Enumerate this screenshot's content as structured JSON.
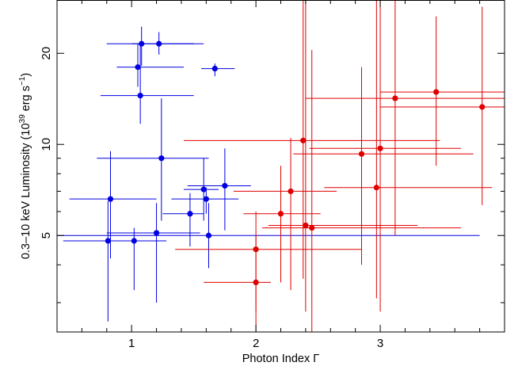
{
  "chart_data": {
    "type": "scatter",
    "xlabel": "Photon Index Γ",
    "ylabel_parts": [
      "0.3–10 keV Luminosity (10",
      "39",
      " erg s",
      "−1",
      ")"
    ],
    "xlim": [
      0.4,
      4.0
    ],
    "ylim": [
      2.4,
      30
    ],
    "y_scale": "log",
    "x_ticks": [
      {
        "value": 1,
        "label": "1"
      },
      {
        "value": 2,
        "label": "2"
      },
      {
        "value": 3,
        "label": "3"
      }
    ],
    "x_minor_ticks": [
      0.6,
      0.8,
      1.2,
      1.4,
      1.6,
      1.8,
      2.2,
      2.4,
      2.6,
      2.8,
      3.2,
      3.4,
      3.6,
      3.8
    ],
    "y_ticks": [
      {
        "value": 5,
        "label": "5"
      },
      {
        "value": 10,
        "label": "10"
      },
      {
        "value": 20,
        "label": "20"
      }
    ],
    "y_minor_ticks": [
      3,
      4,
      6,
      7,
      8,
      9,
      30
    ],
    "grid": false,
    "series": [
      {
        "color": "#0000e0",
        "points": [
          {
            "x": 0.81,
            "y": 4.8,
            "xlo": 0.45,
            "xhi": 1.2,
            "ylo": 2.6,
            "yhi": 6.5
          },
          {
            "x": 0.83,
            "y": 6.6,
            "xlo": 0.5,
            "xhi": 1.2,
            "ylo": 4.2,
            "yhi": 9.5
          },
          {
            "x": 1.02,
            "y": 4.8,
            "xlo": 0.88,
            "xhi": 1.28,
            "ylo": 3.3,
            "yhi": 5.3
          },
          {
            "x": 1.08,
            "y": 21.5,
            "xlo": 0.8,
            "xhi": 1.58,
            "ylo": 18.2,
            "yhi": 24.5
          },
          {
            "x": 1.05,
            "y": 18.0,
            "xlo": 0.88,
            "xhi": 1.42,
            "ylo": 15.5,
            "yhi": 21.5
          },
          {
            "x": 1.07,
            "y": 14.5,
            "xlo": 0.75,
            "xhi": 1.5,
            "ylo": 11.7,
            "yhi": 21.5
          },
          {
            "x": 1.22,
            "y": 21.5,
            "xlo": 1.0,
            "xhi": 1.5,
            "ylo": 19.8,
            "yhi": 23.5
          },
          {
            "x": 1.24,
            "y": 9.0,
            "xlo": 0.72,
            "xhi": 1.62,
            "ylo": 5.6,
            "yhi": 14.2
          },
          {
            "x": 1.2,
            "y": 5.1,
            "xlo": 0.8,
            "xhi": 1.55,
            "ylo": 3.0,
            "yhi": 6.4
          },
          {
            "x": 1.47,
            "y": 5.9,
            "xlo": 1.25,
            "xhi": 1.58,
            "ylo": 4.6,
            "yhi": 6.9
          },
          {
            "x": 1.58,
            "y": 7.1,
            "xlo": 1.42,
            "xhi": 1.7,
            "ylo": 5.6,
            "yhi": 9.0
          },
          {
            "x": 1.6,
            "y": 6.6,
            "xlo": 1.32,
            "xhi": 1.86,
            "ylo": 5.9,
            "yhi": 7.2
          },
          {
            "x": 1.62,
            "y": 5.0,
            "xlo": 0.4,
            "xhi": 3.8,
            "ylo": 3.9,
            "yhi": 6.4
          },
          {
            "x": 1.75,
            "y": 7.3,
            "xlo": 1.45,
            "xhi": 1.96,
            "ylo": 5.2,
            "yhi": 9.7
          },
          {
            "x": 1.67,
            "y": 17.8,
            "xlo": 1.56,
            "xhi": 1.83,
            "ylo": 16.8,
            "yhi": 18.5
          }
        ]
      },
      {
        "color": "#e00000",
        "points": [
          {
            "x": 2.0,
            "y": 4.5,
            "xlo": 1.35,
            "xhi": 2.85,
            "ylo": 2.8,
            "yhi": 6.0
          },
          {
            "x": 2.0,
            "y": 3.5,
            "xlo": 1.58,
            "xhi": 2.12,
            "ylo": 2.4,
            "yhi": 5.0
          },
          {
            "x": 2.2,
            "y": 5.9,
            "xlo": 1.9,
            "xhi": 2.52,
            "ylo": 3.5,
            "yhi": 8.5
          },
          {
            "x": 2.28,
            "y": 7.0,
            "xlo": 1.82,
            "xhi": 2.65,
            "ylo": 3.3,
            "yhi": 10.5
          },
          {
            "x": 2.38,
            "y": 10.3,
            "xlo": 1.42,
            "xhi": 3.48,
            "ylo": 3.6,
            "yhi": 30.0
          },
          {
            "x": 2.4,
            "y": 5.4,
            "xlo": 2.1,
            "xhi": 3.3,
            "ylo": 2.8,
            "yhi": 30.0
          },
          {
            "x": 2.45,
            "y": 5.3,
            "xlo": 2.05,
            "xhi": 3.65,
            "ylo": 2.4,
            "yhi": 20.5
          },
          {
            "x": 2.85,
            "y": 9.3,
            "xlo": 2.3,
            "xhi": 3.75,
            "ylo": 4.0,
            "yhi": 18.0
          },
          {
            "x": 2.97,
            "y": 7.2,
            "xlo": 2.55,
            "xhi": 3.9,
            "ylo": 3.1,
            "yhi": 30.0
          },
          {
            "x": 3.0,
            "y": 9.7,
            "xlo": 2.43,
            "xhi": 3.65,
            "ylo": 2.8,
            "yhi": 30.0
          },
          {
            "x": 3.12,
            "y": 14.2,
            "xlo": 2.4,
            "xhi": 4.0,
            "ylo": 5.0,
            "yhi": 30.0
          },
          {
            "x": 3.45,
            "y": 14.9,
            "xlo": 3.0,
            "xhi": 4.0,
            "ylo": 8.5,
            "yhi": 26.5
          },
          {
            "x": 3.82,
            "y": 13.3,
            "xlo": 3.0,
            "xhi": 4.0,
            "ylo": 6.3,
            "yhi": 28.5
          }
        ]
      }
    ]
  }
}
